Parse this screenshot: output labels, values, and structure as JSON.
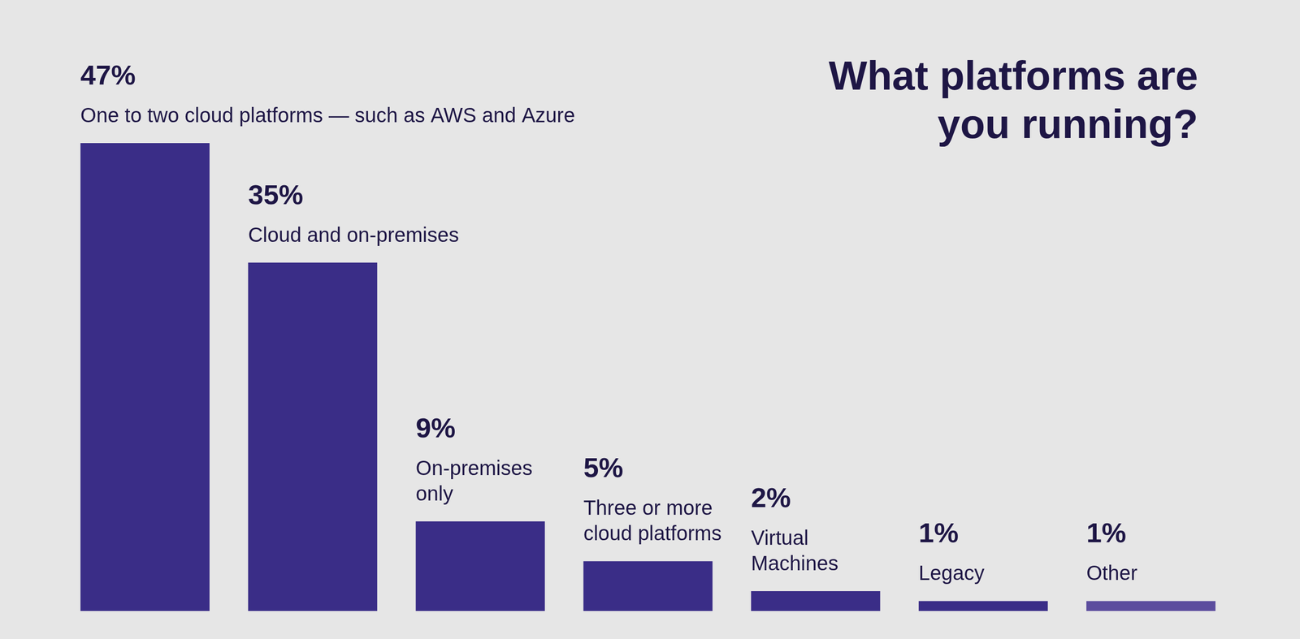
{
  "chart_data": {
    "type": "bar",
    "title": [
      "What platforms are",
      "you running?"
    ],
    "categories": [
      "One to two cloud platforms — such as AWS and Azure",
      "Cloud and on-premises",
      [
        "On-premises",
        "only"
      ],
      [
        "Three or more",
        "cloud platforms"
      ],
      [
        "Virtual",
        "Machines"
      ],
      "Legacy",
      "Other"
    ],
    "values": [
      47,
      35,
      9,
      5,
      2,
      1,
      1
    ],
    "value_labels": [
      "47%",
      "35%",
      "9%",
      "5%",
      "2%",
      "1%",
      "1%"
    ],
    "colors": [
      "#3a2d87",
      "#3a2d87",
      "#3a2d87",
      "#3a2d87",
      "#3a2d87",
      "#3a2d87",
      "#5c4d9e"
    ],
    "ylim": [
      0,
      47
    ],
    "grid": false,
    "data_labels": true,
    "tick_labels": false
  }
}
